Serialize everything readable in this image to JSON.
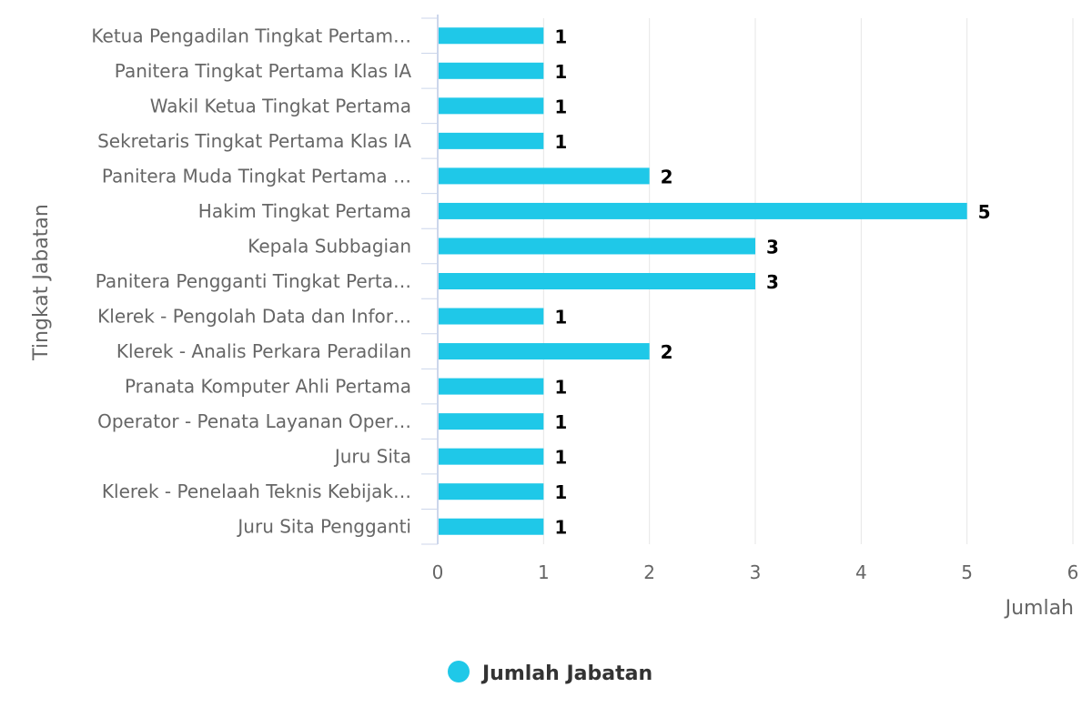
{
  "chart_data": {
    "type": "bar",
    "orientation": "horizontal",
    "categories": [
      "Ketua Pengadilan Tingkat Pertam…",
      "Panitera Tingkat Pertama Klas IA",
      "Wakil Ketua Tingkat Pertama",
      "Sekretaris Tingkat Pertama Klas IA",
      "Panitera Muda Tingkat Pertama …",
      "Hakim Tingkat Pertama",
      "Kepala Subbagian",
      "Panitera Pengganti Tingkat Perta…",
      "Klerek - Pengolah Data dan Infor…",
      "Klerek - Analis Perkara Peradilan",
      "Pranata Komputer Ahli Pertama",
      "Operator - Penata Layanan Oper…",
      "Juru Sita",
      "Klerek - Penelaah Teknis Kebijak…",
      "Juru Sita Pengganti"
    ],
    "series": [
      {
        "name": "Jumlah Jabatan",
        "color": "#1fc8e8",
        "values": [
          1,
          1,
          1,
          1,
          2,
          5,
          3,
          3,
          1,
          2,
          1,
          1,
          1,
          1,
          1
        ]
      }
    ],
    "xlabel": "Jumlah",
    "ylabel": "Tingkat Jabatan",
    "xlim": [
      0,
      6
    ],
    "xticks": [
      "0",
      "1",
      "2",
      "3",
      "4",
      "5",
      "6"
    ],
    "grid": true,
    "legend_position": "bottom-center"
  }
}
